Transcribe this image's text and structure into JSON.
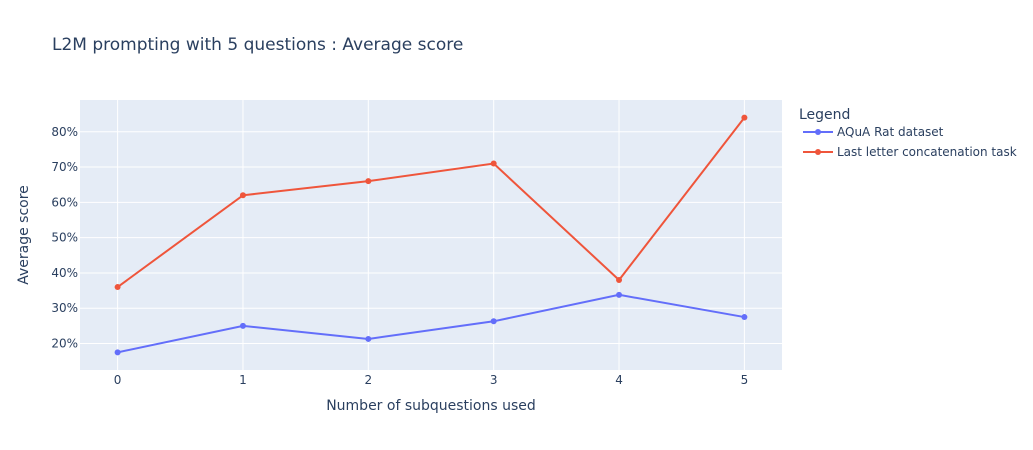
{
  "chart_data": {
    "type": "line",
    "title": "L2M prompting with 5 questions : Average score",
    "xlabel": "Number of subquestions used",
    "ylabel": "Average score",
    "x": [
      0,
      1,
      2,
      3,
      4,
      5
    ],
    "x_tick_labels": [
      "0",
      "1",
      "2",
      "3",
      "4",
      "5"
    ],
    "y_tick_values": [
      0.2,
      0.3,
      0.4,
      0.5,
      0.6,
      0.7,
      0.8
    ],
    "y_tick_labels": [
      "20%",
      "30%",
      "40%",
      "50%",
      "60%",
      "70%",
      "80%"
    ],
    "xlim": [
      -0.3,
      5.3
    ],
    "ylim": [
      0.125,
      0.89
    ],
    "grid": true,
    "legend_title": "Legend",
    "legend_position": "right",
    "series": [
      {
        "name": "AQuA Rat dataset",
        "color": "#636efa",
        "values": [
          0.175,
          0.25,
          0.213,
          0.263,
          0.338,
          0.275
        ]
      },
      {
        "name": "Last letter concatenation task",
        "color": "#ef553b",
        "values": [
          0.36,
          0.62,
          0.66,
          0.71,
          0.38,
          0.84
        ]
      }
    ],
    "colors": {
      "plot_bg": "#e5ecf6",
      "grid": "#ffffff",
      "text": "#2a3f5f"
    }
  }
}
